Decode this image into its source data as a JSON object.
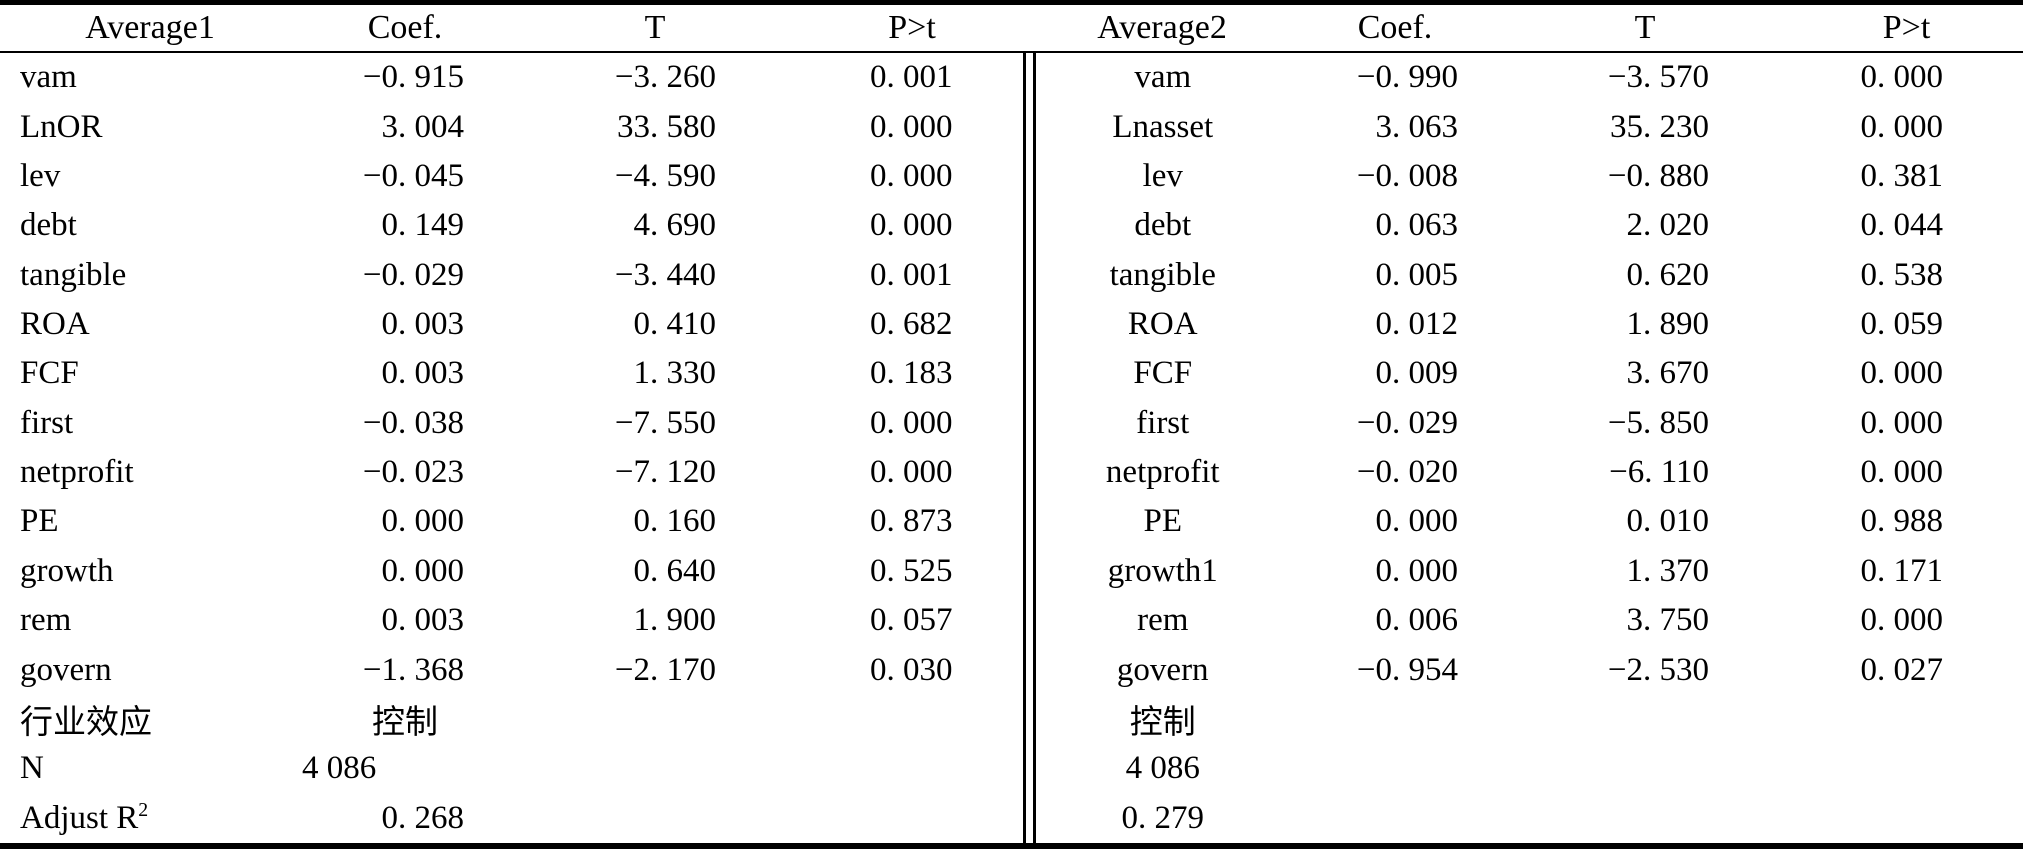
{
  "header": {
    "columns": [
      "Average1",
      "Coef.",
      "T",
      "P>t",
      "Average2",
      "Coef.",
      "T",
      "P>t"
    ]
  },
  "rows": [
    {
      "cells": [
        "vam",
        "−0. 915",
        "−3. 260",
        "0. 001",
        "vam",
        "−0. 990",
        "−3. 570",
        "0. 000"
      ]
    },
    {
      "cells": [
        "LnOR",
        "3. 004",
        "33. 580",
        "0. 000",
        "Lnasset",
        "3. 063",
        "35. 230",
        "0. 000"
      ]
    },
    {
      "cells": [
        "lev",
        "−0. 045",
        "−4. 590",
        "0. 000",
        "lev",
        "−0. 008",
        "−0. 880",
        "0. 381"
      ]
    },
    {
      "cells": [
        "debt",
        "0. 149",
        "4. 690",
        "0. 000",
        "debt",
        "0. 063",
        "2. 020",
        "0. 044"
      ]
    },
    {
      "cells": [
        "tangible",
        "−0. 029",
        "−3. 440",
        "0. 001",
        "tangible",
        "0. 005",
        "0. 620",
        "0. 538"
      ]
    },
    {
      "cells": [
        "ROA",
        "0. 003",
        "0. 410",
        "0. 682",
        "ROA",
        "0. 012",
        "1. 890",
        "0. 059"
      ]
    },
    {
      "cells": [
        "FCF",
        "0. 003",
        "1. 330",
        "0. 183",
        "FCF",
        "0. 009",
        "3. 670",
        "0. 000"
      ]
    },
    {
      "cells": [
        "first",
        "−0. 038",
        "−7. 550",
        "0. 000",
        "first",
        "−0. 029",
        "−5. 850",
        "0. 000"
      ]
    },
    {
      "cells": [
        "netprofit",
        "−0. 023",
        "−7. 120",
        "0. 000",
        "netprofit",
        "−0. 020",
        "−6. 110",
        "0. 000"
      ]
    },
    {
      "cells": [
        "PE",
        "0. 000",
        "0. 160",
        "0. 873",
        "PE",
        "0. 000",
        "0. 010",
        "0. 988"
      ]
    },
    {
      "cells": [
        "growth",
        "0. 000",
        "0. 640",
        "0. 525",
        "growth1",
        "0. 000",
        "1. 370",
        "0. 171"
      ]
    },
    {
      "cells": [
        "rem",
        "0. 003",
        "1. 900",
        "0. 057",
        "rem",
        "0. 006",
        "3. 750",
        "0. 000"
      ]
    },
    {
      "cells": [
        "govern",
        "−1. 368",
        "−2. 170",
        "0. 030",
        "govern",
        "−0. 954",
        "−2. 530",
        "0. 027"
      ]
    },
    {
      "cells": [
        "行业效应",
        "控制",
        "",
        "",
        "控制",
        "",
        "",
        ""
      ],
      "overrides": {
        "1": "center"
      }
    },
    {
      "cells": [
        "N",
        "4 086",
        "",
        "",
        "4 086",
        "",
        "",
        ""
      ],
      "overrides": {
        "1": "left"
      }
    },
    {
      "cells": [
        {
          "text": "Adjust R",
          "sup": "2"
        },
        "0. 268",
        "",
        "",
        "0. 279",
        "",
        "",
        ""
      ]
    }
  ]
}
